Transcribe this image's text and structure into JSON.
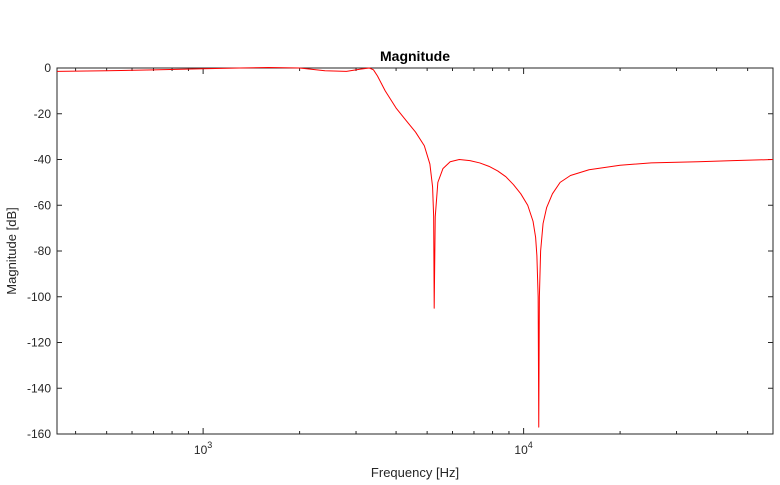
{
  "chart_data": {
    "type": "line",
    "title": "Magnitude",
    "xlabel": "Frequency [Hz]",
    "ylabel": "Magnitude [dB]",
    "x_scale": "log",
    "xlim": [
      350,
      60000
    ],
    "ylim": [
      -160,
      0
    ],
    "grid": false,
    "yticks": [
      0,
      -20,
      -40,
      -60,
      -80,
      -100,
      -120,
      -140,
      -160
    ],
    "xticks": [
      {
        "base": "10",
        "exp": "3",
        "value": 1000
      },
      {
        "base": "10",
        "exp": "4",
        "value": 10000
      }
    ],
    "series": [
      {
        "color": "#ff0000",
        "x": [
          350,
          500,
          700,
          1000,
          1300,
          1600,
          2000,
          2400,
          2800,
          3100,
          3300,
          3400,
          3500,
          3700,
          4000,
          4300,
          4600,
          4900,
          5100,
          5200,
          5240,
          5260,
          5300,
          5400,
          5600,
          5900,
          6300,
          6800,
          7300,
          7800,
          8300,
          8800,
          9300,
          9800,
          10300,
          10700,
          10900,
          11000,
          11100,
          11150,
          11200,
          11300,
          11500,
          11800,
          12300,
          13000,
          14000,
          16000,
          20000,
          25000,
          35000,
          45000,
          60000
        ],
        "y": [
          -1.5,
          -1.2,
          -0.8,
          -0.3,
          0,
          0.2,
          0,
          -1.2,
          -1.5,
          -0.5,
          0,
          -0.8,
          -3.5,
          -10,
          -17.5,
          -23,
          -28,
          -34,
          -42,
          -52,
          -65,
          -105,
          -65,
          -50,
          -44,
          -41,
          -40,
          -40.5,
          -41.5,
          -43,
          -45,
          -47.5,
          -51,
          -55,
          -60,
          -67,
          -74,
          -82,
          -100,
          -157,
          -100,
          -80,
          -68,
          -61,
          -55,
          -50,
          -47,
          -44.5,
          -42.5,
          -41.5,
          -41,
          -40.5,
          -40
        ]
      }
    ]
  }
}
